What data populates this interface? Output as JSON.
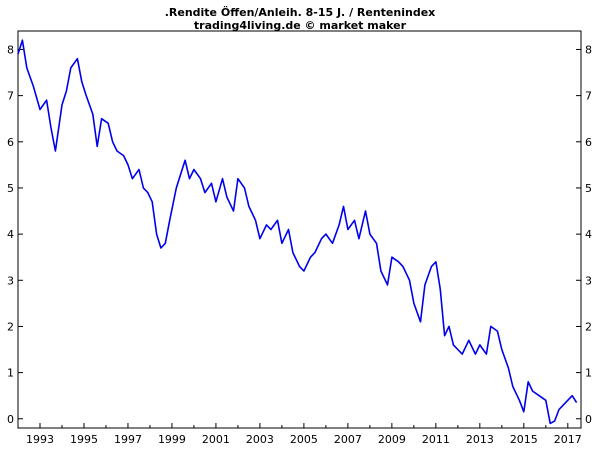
{
  "chart_data": {
    "type": "line",
    "title": ".Rendite Öffen/Anleih. 8-15 J. / Rentenindex",
    "subtitle": "trading4living.de © market maker",
    "xlabel": "",
    "ylabel": "",
    "xlim": [
      1992.0,
      2017.6
    ],
    "ylim": [
      -0.2,
      8.4
    ],
    "x_tick_labels": [
      "1993",
      "1995",
      "1997",
      "1999",
      "2001",
      "2003",
      "2005",
      "2007",
      "2009",
      "2011",
      "2013",
      "2015",
      "2017"
    ],
    "y_tick_labels": [
      "0",
      "1",
      "2",
      "3",
      "4",
      "5",
      "6",
      "7",
      "8"
    ],
    "grid": false,
    "legend": "none",
    "colors": {
      "series": "#0000ee",
      "axis": "#000000",
      "background": "#ffffff"
    },
    "series": [
      {
        "x": [
          1992.0,
          1992.2,
          1992.4,
          1992.7,
          1993.0,
          1993.3,
          1993.5,
          1993.7,
          1994.0,
          1994.2,
          1994.4,
          1994.7,
          1994.9,
          1995.1,
          1995.4,
          1995.6,
          1995.8,
          1996.1,
          1996.3,
          1996.5,
          1996.8,
          1997.0,
          1997.2,
          1997.5,
          1997.7,
          1997.9,
          1998.1,
          1998.3,
          1998.5,
          1998.7,
          1998.9,
          1999.2,
          1999.4,
          1999.6,
          1999.8,
          2000.0,
          2000.3,
          2000.5,
          2000.8,
          2001.0,
          2001.3,
          2001.5,
          2001.8,
          2002.0,
          2002.3,
          2002.5,
          2002.8,
          2003.0,
          2003.3,
          2003.5,
          2003.8,
          2004.0,
          2004.3,
          2004.5,
          2004.8,
          2005.0,
          2005.3,
          2005.5,
          2005.8,
          2006.0,
          2006.3,
          2006.6,
          2006.8,
          2007.0,
          2007.3,
          2007.5,
          2007.8,
          2008.0,
          2008.3,
          2008.5,
          2008.8,
          2009.0,
          2009.3,
          2009.5,
          2009.8,
          2010.0,
          2010.3,
          2010.5,
          2010.8,
          2011.0,
          2011.2,
          2011.4,
          2011.6,
          2011.8,
          2012.0,
          2012.2,
          2012.5,
          2012.8,
          2013.0,
          2013.3,
          2013.5,
          2013.8,
          2014.0,
          2014.3,
          2014.5,
          2014.8,
          2015.0,
          2015.2,
          2015.4,
          2015.7,
          2016.0,
          2016.2,
          2016.4,
          2016.6,
          2016.8,
          2017.0,
          2017.2,
          2017.4
        ],
        "y": [
          7.9,
          8.2,
          7.6,
          7.2,
          6.7,
          6.9,
          6.3,
          5.8,
          6.8,
          7.1,
          7.6,
          7.8,
          7.3,
          7.0,
          6.6,
          5.9,
          6.5,
          6.4,
          6.0,
          5.8,
          5.7,
          5.5,
          5.2,
          5.4,
          5.0,
          4.9,
          4.7,
          4.0,
          3.7,
          3.8,
          4.3,
          5.0,
          5.3,
          5.6,
          5.2,
          5.4,
          5.2,
          4.9,
          5.1,
          4.7,
          5.2,
          4.8,
          4.5,
          5.2,
          5.0,
          4.6,
          4.3,
          3.9,
          4.2,
          4.1,
          4.3,
          3.8,
          4.1,
          3.6,
          3.3,
          3.2,
          3.5,
          3.6,
          3.9,
          4.0,
          3.8,
          4.2,
          4.6,
          4.1,
          4.3,
          3.9,
          4.5,
          4.0,
          3.8,
          3.2,
          2.9,
          3.5,
          3.4,
          3.3,
          3.0,
          2.5,
          2.1,
          2.9,
          3.3,
          3.4,
          2.8,
          1.8,
          2.0,
          1.6,
          1.5,
          1.4,
          1.7,
          1.4,
          1.6,
          1.4,
          2.0,
          1.9,
          1.5,
          1.1,
          0.7,
          0.4,
          0.15,
          0.8,
          0.6,
          0.5,
          0.4,
          -0.1,
          -0.05,
          0.2,
          0.3,
          0.4,
          0.5,
          0.35
        ]
      }
    ]
  }
}
